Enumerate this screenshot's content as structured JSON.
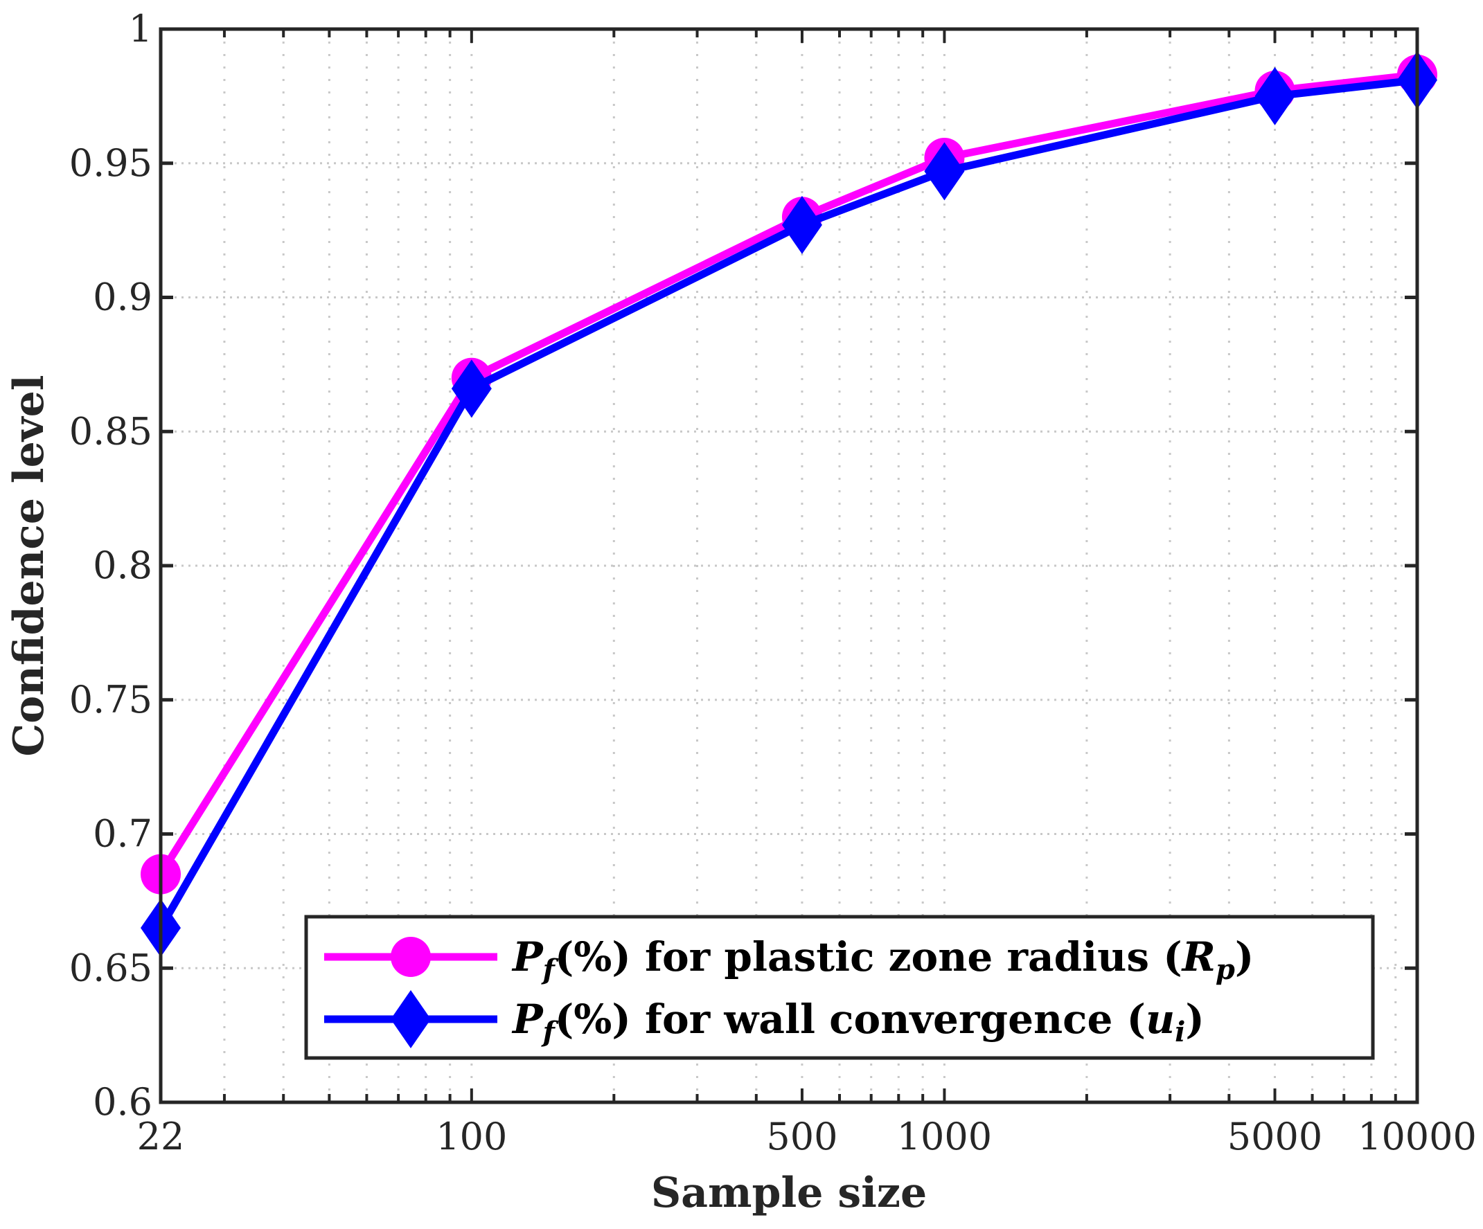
{
  "chart_data": {
    "type": "line",
    "title": "",
    "xlabel": "Sample size",
    "ylabel": "Confidence level",
    "xscale": "log",
    "xlim": [
      22,
      10000
    ],
    "ylim": [
      0.6,
      1.0
    ],
    "xticks": [
      22,
      100,
      500,
      1000,
      5000,
      10000
    ],
    "xtick_labels": [
      "22",
      "100",
      "500",
      "1000",
      "5000",
      "10000"
    ],
    "yticks": [
      0.6,
      0.65,
      0.7,
      0.75,
      0.8,
      0.85,
      0.9,
      0.95,
      1.0
    ],
    "ytick_labels": [
      "0.6",
      "0.65",
      "0.7",
      "0.75",
      "0.8",
      "0.85",
      "0.9",
      "0.95",
      "1"
    ],
    "grid": true,
    "legend_position": "bottom-right",
    "x": [
      22,
      100,
      500,
      1000,
      5000,
      10000
    ],
    "series": [
      {
        "name": "Pf(%) for plastic zone radius (Rp)",
        "legend_main": "(%) for plastic zone radius (",
        "legend_sub": "p",
        "legend_var": "R",
        "color": "#ff00ff",
        "marker": "circle",
        "values": [
          0.685,
          0.87,
          0.93,
          0.952,
          0.977,
          0.983
        ]
      },
      {
        "name": "Pf(%) for wall convergence (ui)",
        "legend_main": "(%) for wall convergence (",
        "legend_sub": "i",
        "legend_var": "u",
        "color": "#0000ff",
        "marker": "diamond",
        "values": [
          0.665,
          0.866,
          0.927,
          0.947,
          0.975,
          0.981
        ]
      }
    ]
  }
}
